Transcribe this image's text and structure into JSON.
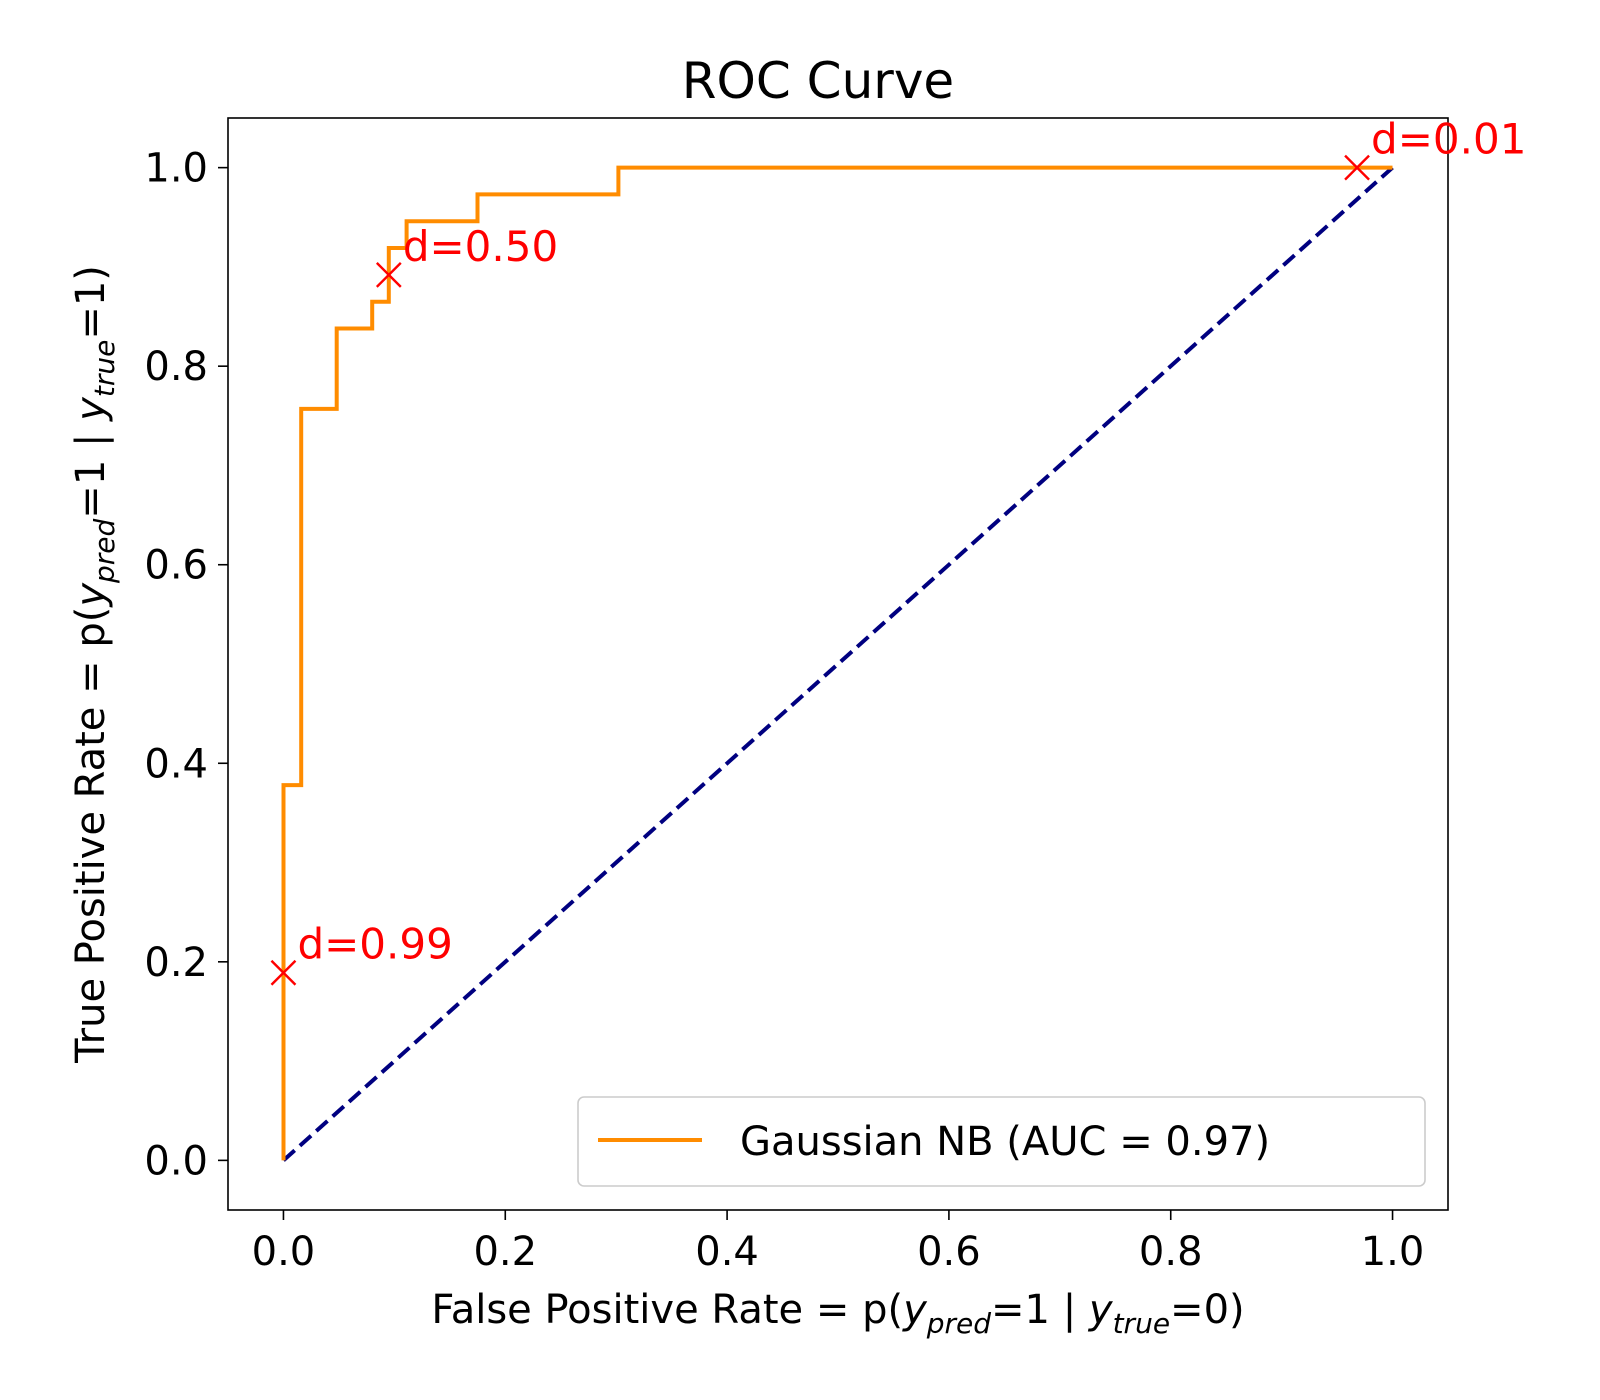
{
  "chart_data": {
    "type": "line",
    "title": "ROC Curve",
    "xlabel": {
      "prefix": "False Positive Rate = p(",
      "y1": "y",
      "sub1": "pred",
      "mid": "=1 | ",
      "y2": "y",
      "sub2": "true",
      "suffix": "=0)"
    },
    "ylabel": {
      "prefix": "True Positive Rate = p(",
      "y1": "y",
      "sub1": "pred",
      "mid": "=1 | ",
      "y2": "y",
      "sub2": "true",
      "suffix": "=1)"
    },
    "xlim": [
      -0.05,
      1.05
    ],
    "ylim": [
      -0.05,
      1.05
    ],
    "xticks": [
      "0.0",
      "0.2",
      "0.4",
      "0.6",
      "0.8",
      "1.0"
    ],
    "yticks": [
      "0.0",
      "0.2",
      "0.4",
      "0.6",
      "0.8",
      "1.0"
    ],
    "grid": false,
    "legend_position": "lower-right",
    "series": [
      {
        "name": "Gaussian NB (AUC = 0.97)",
        "color": "#ff8c00",
        "style": "step",
        "x": [
          0.0,
          0.0,
          0.016,
          0.016,
          0.048,
          0.048,
          0.08,
          0.08,
          0.095,
          0.095,
          0.111,
          0.111,
          0.175,
          0.175,
          0.302,
          0.302,
          1.0
        ],
        "y": [
          0.0,
          0.378,
          0.378,
          0.757,
          0.757,
          0.838,
          0.838,
          0.865,
          0.865,
          0.919,
          0.919,
          0.946,
          0.946,
          0.973,
          0.973,
          1.0,
          1.0
        ]
      },
      {
        "color": "#000080",
        "style": "dashed",
        "x": [
          0,
          1
        ],
        "y": [
          0,
          1
        ]
      }
    ],
    "annotations": [
      {
        "text": "d=0.99",
        "x": 0.0,
        "y": 0.189
      },
      {
        "text": "d=0.50",
        "x": 0.095,
        "y": 0.892
      },
      {
        "text": "d=0.01",
        "x": 0.968,
        "y": 1.0
      }
    ],
    "annotation_color": "#ff0000"
  }
}
